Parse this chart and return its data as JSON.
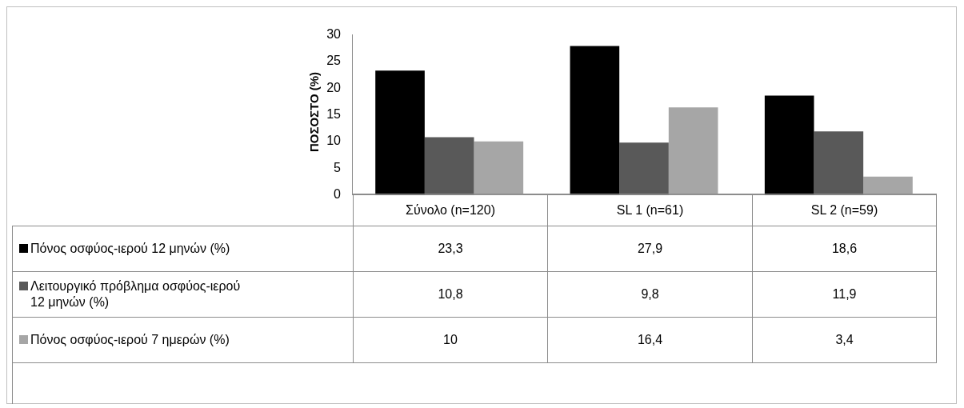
{
  "chart_data": {
    "type": "bar",
    "ylabel": "ΠΟΣΟΣΤΟ (%)",
    "categories": [
      "Σύνολο (n=120)",
      "SL 1 (n=61)",
      "SL 2 (n=59)"
    ],
    "series": [
      {
        "name": "Πόνος οσφύος-ιερού 12 μηνών (%)",
        "color": "#000000",
        "values": [
          23.3,
          27.9,
          18.6
        ],
        "value_labels": [
          "23,3",
          "27,9",
          "18,6"
        ]
      },
      {
        "name": "Λειτουργικό πρόβλημα οσφύος-ιερού 12 μηνών (%)",
        "color": "#595959",
        "values": [
          10.8,
          9.8,
          11.9
        ],
        "value_labels": [
          "10,8",
          "9,8",
          "11,9"
        ]
      },
      {
        "name": "Πόνος οσφύος-ιερού 7 ημερών (%)",
        "color": "#a6a6a6",
        "values": [
          10,
          16.4,
          3.4
        ],
        "value_labels": [
          "10",
          "16,4",
          "3,4"
        ]
      }
    ],
    "ylim": [
      0,
      30
    ],
    "yticks": [
      0,
      5,
      10,
      15,
      20,
      25,
      30
    ],
    "grid": false,
    "legend": "bottom"
  }
}
